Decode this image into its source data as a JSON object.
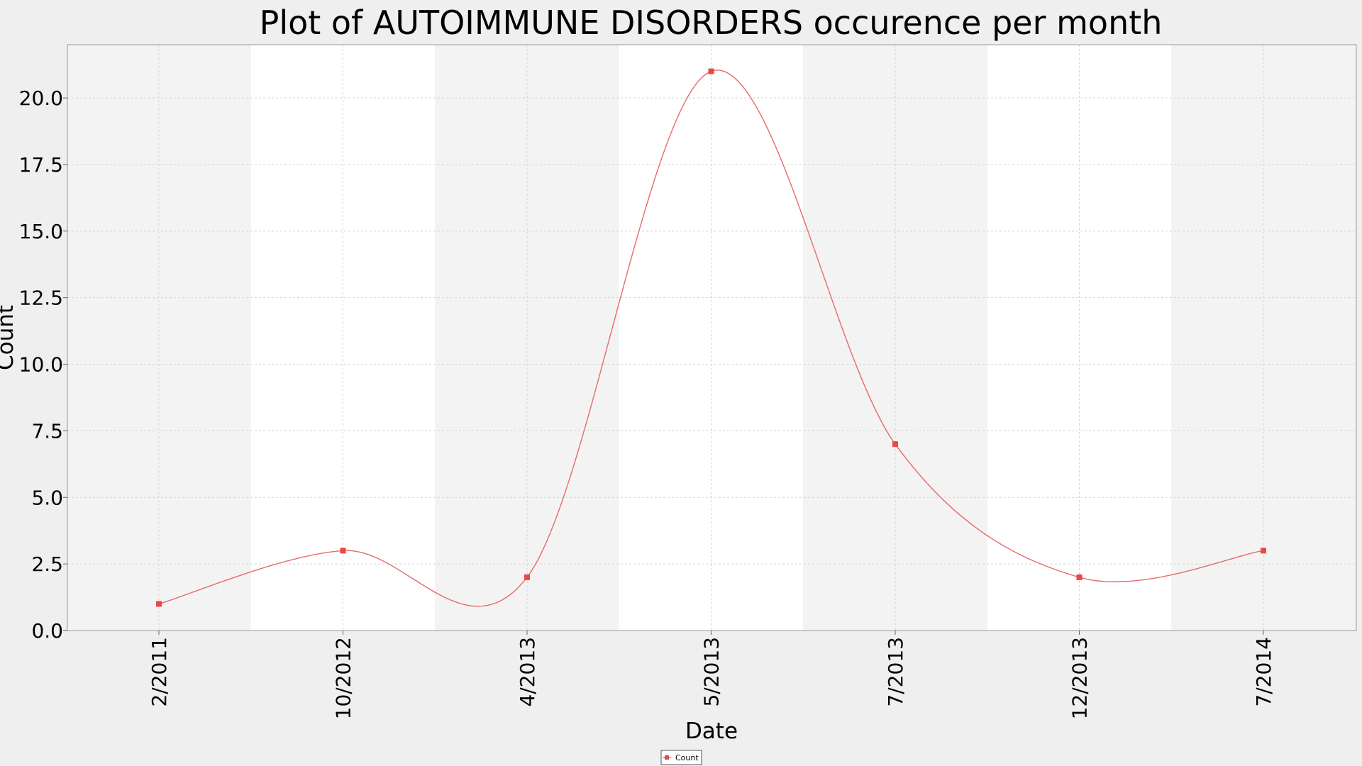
{
  "chart_data": {
    "type": "line",
    "title": "Plot of AUTOIMMUNE DISORDERS occurence per month",
    "xlabel": "Date",
    "ylabel": "Count",
    "categories": [
      "2/2011",
      "10/2012",
      "4/2013",
      "5/2013",
      "7/2013",
      "12/2013",
      "7/2014"
    ],
    "series": [
      {
        "name": "Count",
        "values": [
          1,
          3,
          2,
          21,
          7,
          2,
          3
        ]
      }
    ],
    "ylim": [
      0,
      22
    ],
    "yticks": [
      "0.0",
      "2.5",
      "5.0",
      "7.5",
      "10.0",
      "12.5",
      "15.0",
      "17.5",
      "20.0"
    ],
    "grid": true,
    "smooth": true,
    "legend_position": "bottom-center",
    "colors": {
      "line": "#e86a6a",
      "marker": "#e84848",
      "band_shaded": "#f3f3f3",
      "band_plain": "#ffffff",
      "grid": "#d4d4d4",
      "background": "#efefef"
    }
  }
}
